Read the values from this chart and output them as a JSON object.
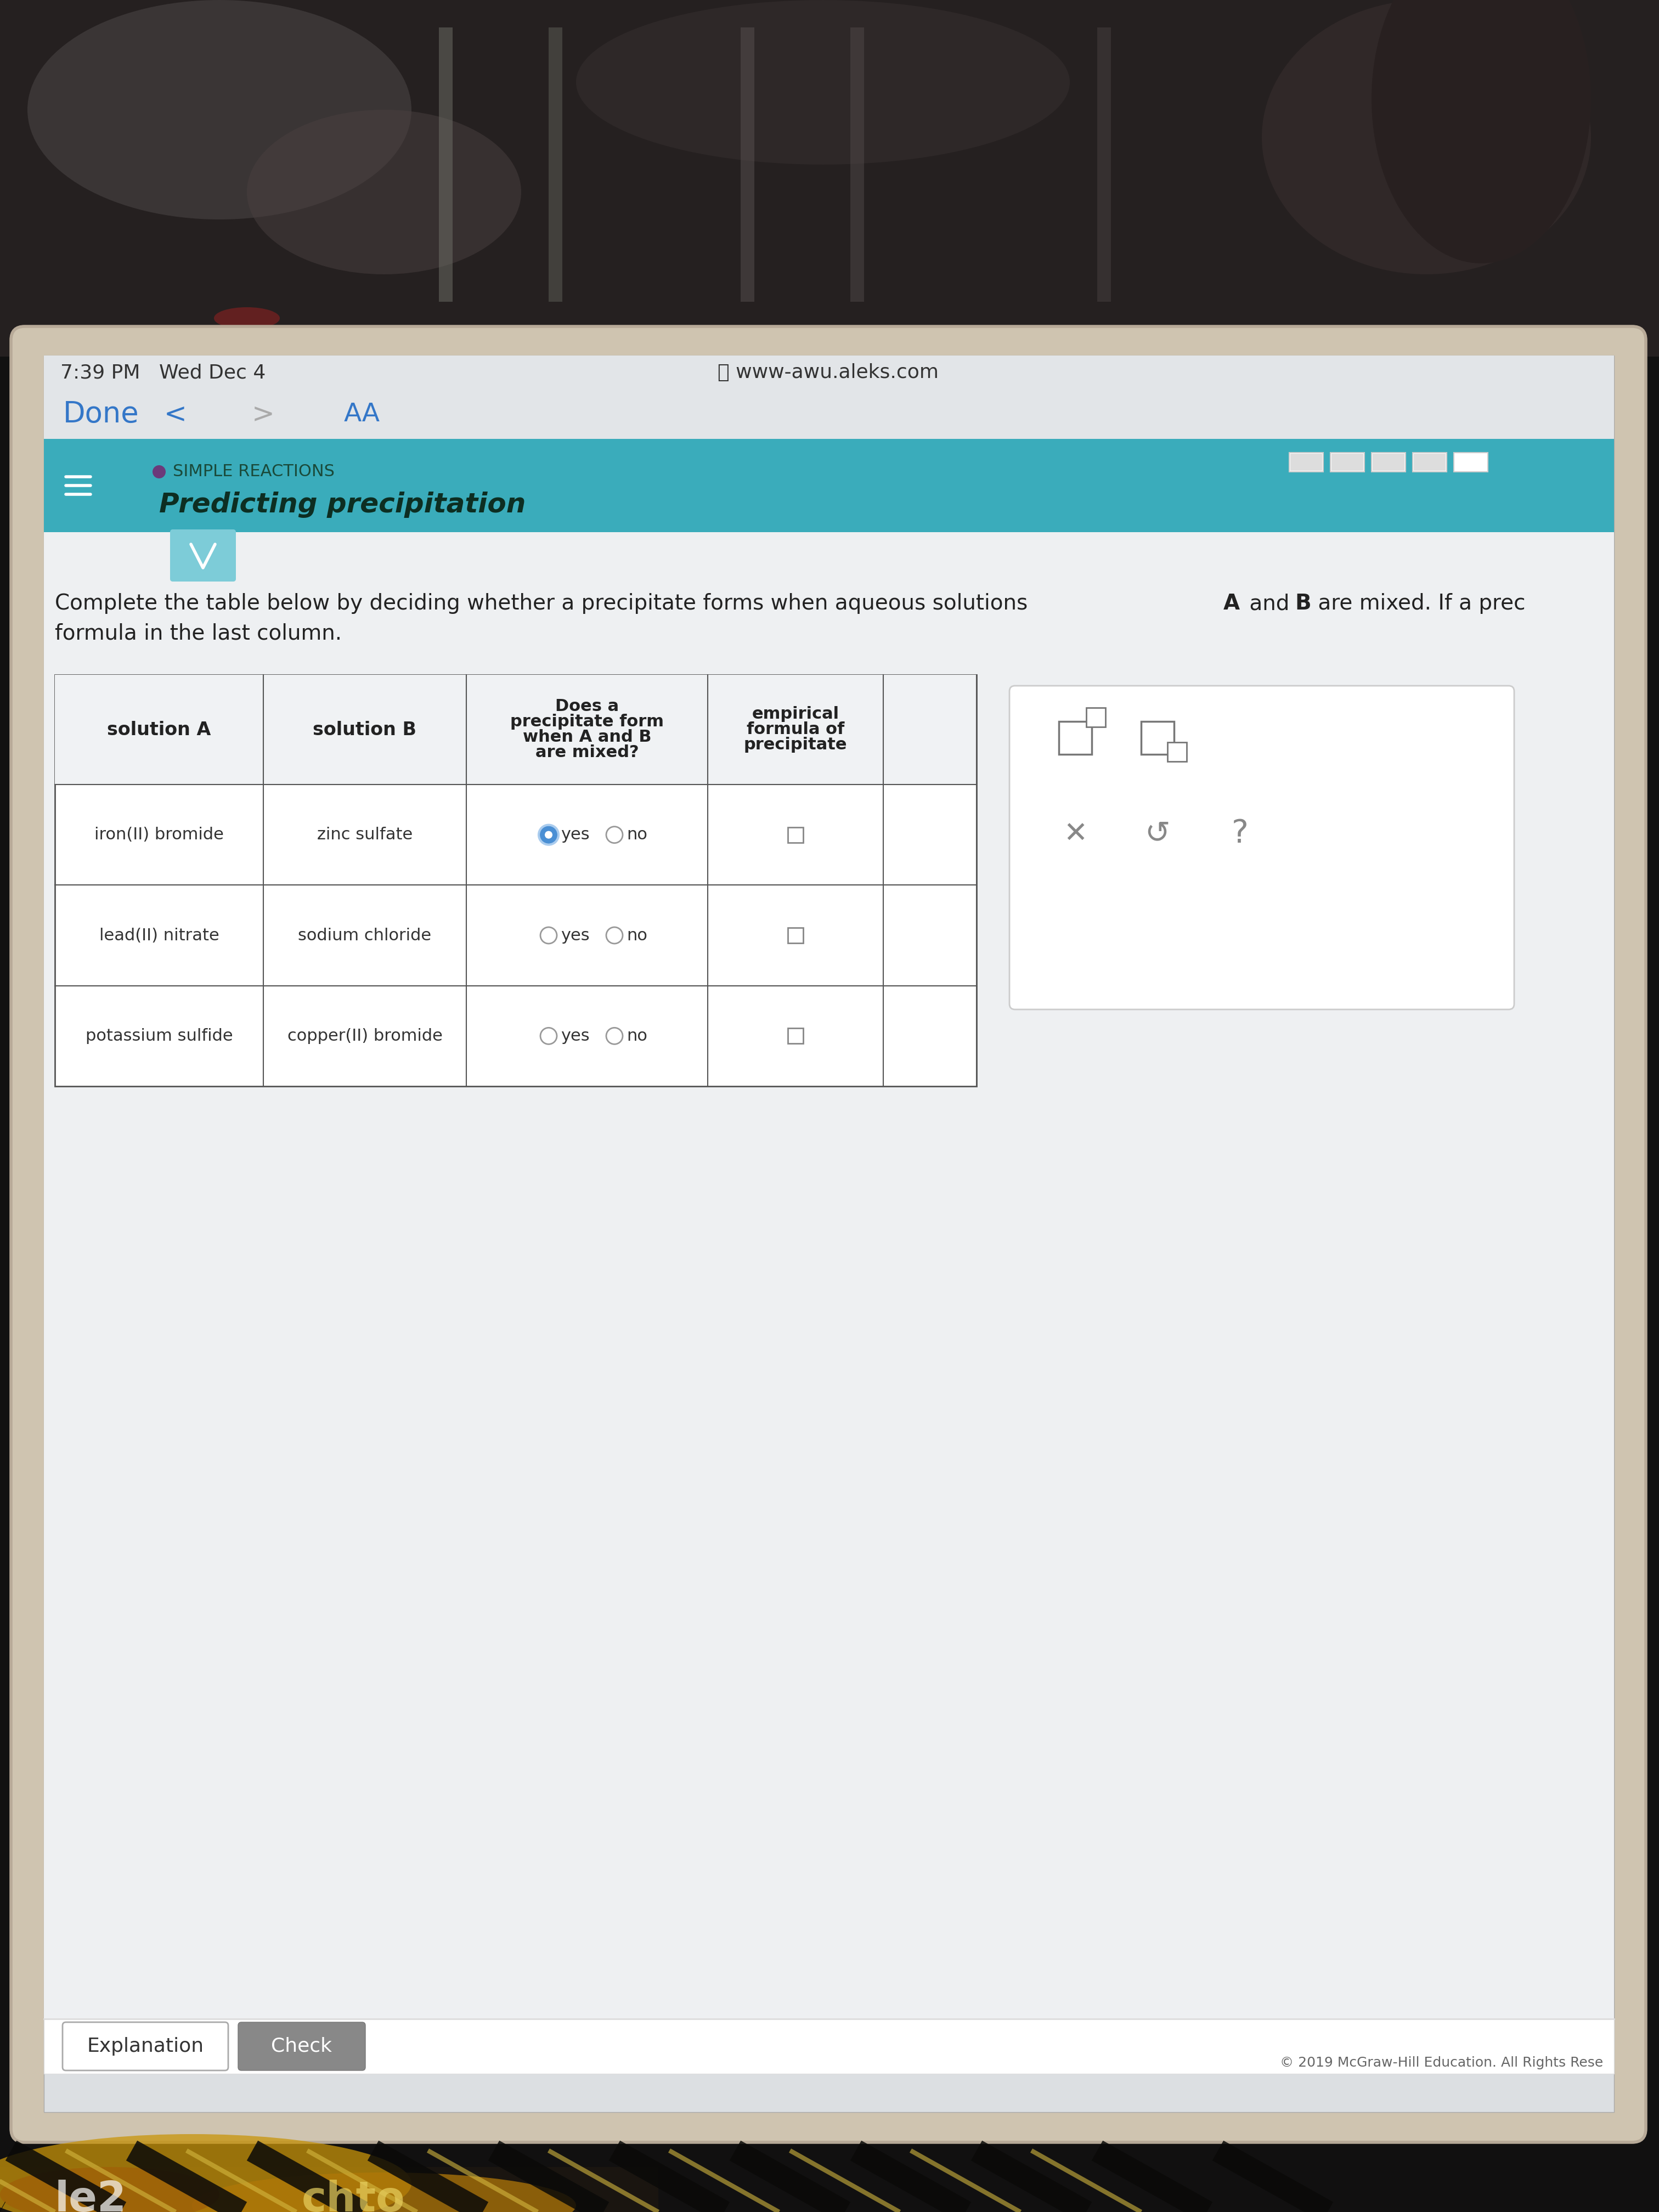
{
  "status_time": "7:39 PM   Wed Dec 4",
  "url": "www-awu.aleks.com",
  "nav_done": "Done",
  "nav_aa": "AA",
  "section_label": "SIMPLE REACTIONS",
  "title": "Predicting precipitation",
  "instruction1": "Complete the table below by deciding whether a precipitate forms when aqueous solutions ",
  "instruction_A": "A",
  "instruction_mid": " and ",
  "instruction_B": "B",
  "instruction2": " are mixed. If a prec",
  "instruction3": "formula in the last column.",
  "table_header_col1": "solution A",
  "table_header_col2": "solution B",
  "table_header_col3_lines": [
    "Does a",
    "precipitate form",
    "when A and B",
    "are mixed?"
  ],
  "table_header_col4_lines": [
    "empirical",
    "formula of",
    "precipitate"
  ],
  "rows": [
    {
      "sol_a": "iron(II) bromide",
      "sol_b": "zinc sulfate",
      "yes_selected": true
    },
    {
      "sol_a": "lead(II) nitrate",
      "sol_b": "sodium chloride",
      "yes_selected": false
    },
    {
      "sol_a": "potassium sulfide",
      "sol_b": "copper(II) bromide",
      "yes_selected": false
    }
  ],
  "footer_left": "Explanation",
  "footer_right": "Check",
  "copyright": "© 2019 McGraw-Hill Education. All Rights Rese",
  "teal_color": "#3aacbb",
  "teal_light": "#5bbfcc",
  "screen_bg": "#dcdfe2",
  "content_bg": "#e8ebee",
  "white": "#ffffff",
  "table_bg": "#f0f2f4",
  "blue_nav": "#3477c8",
  "gray_nav": "#aaaaaa",
  "border_color": "#999999",
  "dark_border": "#555555",
  "selected_radio": "#4a8fd4",
  "check_btn_bg": "#888888",
  "section_dot": "#6b3a7a",
  "teal_dropdown": "#7dccd8"
}
